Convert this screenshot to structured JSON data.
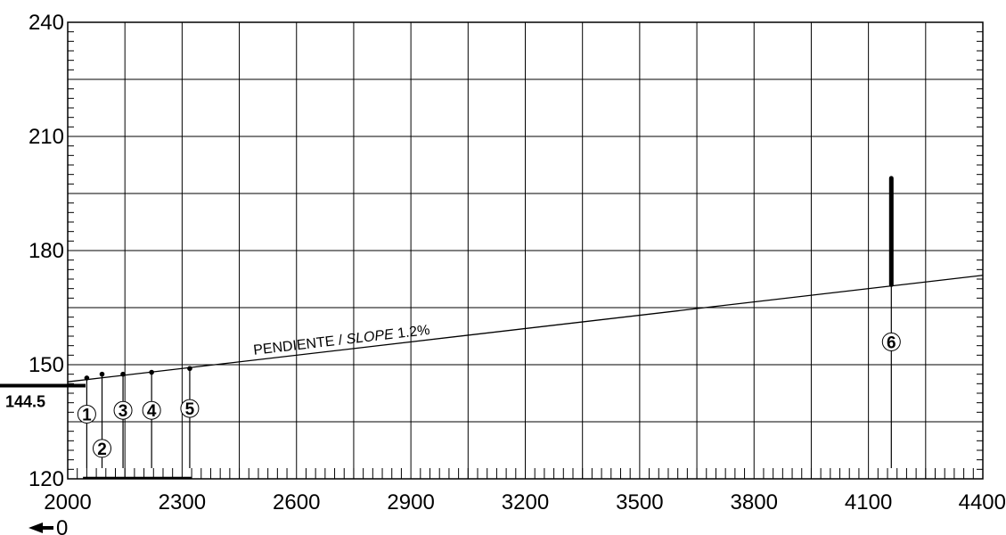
{
  "chart_data": {
    "type": "line",
    "title": "",
    "xlabel": "",
    "ylabel": "",
    "xlim": [
      2000,
      4400
    ],
    "ylim": [
      120,
      240
    ],
    "x_ticks": [
      2000,
      2300,
      2600,
      2900,
      3200,
      3500,
      3800,
      4100,
      4400
    ],
    "y_ticks": [
      120,
      150,
      180,
      210,
      240
    ],
    "grid": true,
    "extra_x_gridlines": [
      2000,
      2300,
      4100
    ],
    "slope_line": {
      "label_prefix": "PENDIENTE / ",
      "label_italic": "SLOPE",
      "label_suffix": " 1.2%",
      "start": {
        "x": 2000,
        "y": 145.5
      },
      "end": {
        "x": 4400,
        "y": 173.5
      }
    },
    "reference": {
      "label": "144.5",
      "y": 144.5
    },
    "origin_label": "0",
    "markers": [
      {
        "label": "1",
        "x": 2050,
        "y_top": 146.5,
        "label_y": 137
      },
      {
        "label": "2",
        "x": 2090,
        "y_top": 147.5,
        "label_y": 128
      },
      {
        "label": "3",
        "x": 2145,
        "y_top": 147.5,
        "label_y": 138
      },
      {
        "label": "4",
        "x": 2220,
        "y_top": 148,
        "label_y": 138
      },
      {
        "label": "5",
        "x": 2320,
        "y_top": 149,
        "label_y": 138.5
      },
      {
        "label": "6",
        "x": 4160,
        "y_top": 199,
        "y_thick_bottom": 171,
        "label_y": 156
      }
    ],
    "low_box": {
      "x_start": 2040,
      "x_end": 2325,
      "y": 120.3
    }
  }
}
